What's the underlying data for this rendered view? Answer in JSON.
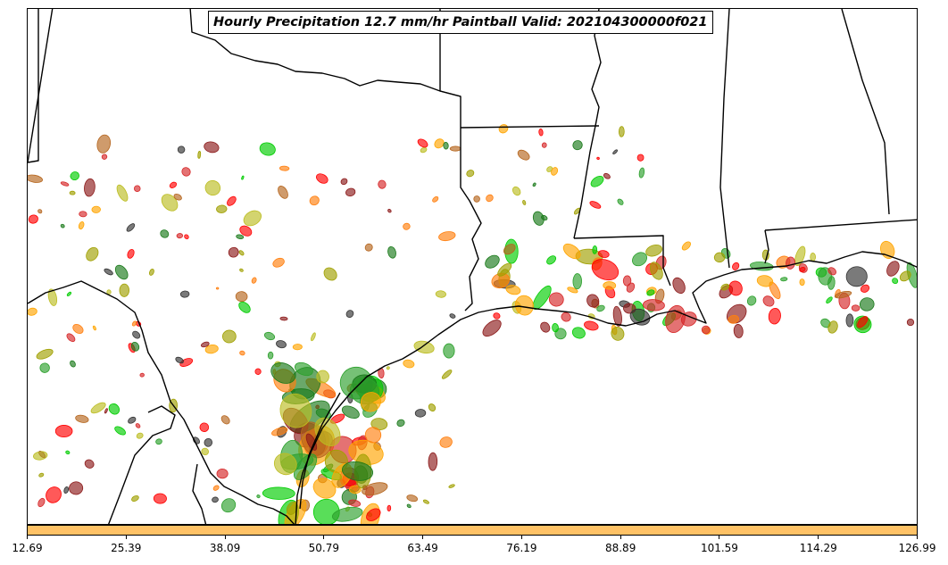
{
  "title": "Hourly Precipitation 12.7 mm/hr Paintball Valid: 202104300000f021",
  "colorbar": {
    "color": "#ffc266",
    "ticks": [
      "12.69",
      "25.39",
      "38.09",
      "50.79",
      "63.49",
      "76.19",
      "88.89",
      "101.59",
      "114.29",
      "126.99"
    ]
  },
  "paintball_colors": [
    "#d62728",
    "#ff0000",
    "#ff7f0e",
    "#ffa500",
    "#2ca02c",
    "#00cc00",
    "#1a7a1a",
    "#bcbd22",
    "#a0a000",
    "#8c1a1a",
    "#333333",
    "#b5651d"
  ]
}
